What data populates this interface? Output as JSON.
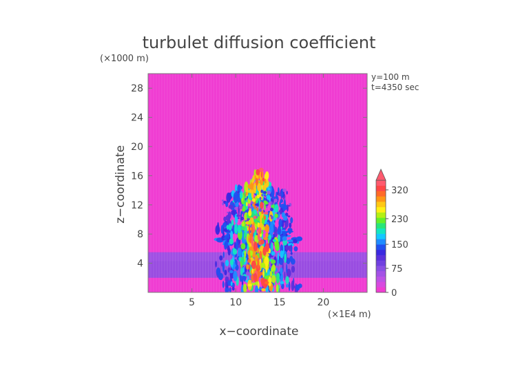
{
  "chart_data": {
    "type": "heatmap",
    "title": "turbulet diffusion coefficient",
    "xlabel": "x−coordinate",
    "ylabel": "z−coordinate",
    "x_unit": "(×1E4 m)",
    "y_unit": "(×1000 m)",
    "annotations": [
      "y=100 m",
      "t=4350 sec"
    ],
    "xlim": [
      0,
      25
    ],
    "ylim": [
      0,
      30
    ],
    "x_ticks": [
      5,
      10,
      15,
      20
    ],
    "y_ticks": [
      4,
      8,
      12,
      16,
      20,
      24,
      28
    ],
    "colorbar": {
      "ticks": [
        0,
        75,
        150,
        230,
        320
      ],
      "levels": [
        0,
        10,
        20,
        30,
        40,
        50,
        60,
        75,
        90,
        110,
        130,
        150,
        170,
        190,
        210,
        230,
        250,
        270,
        290,
        310,
        330,
        350
      ],
      "colors": [
        "#f03cd2",
        "#d84ae0",
        "#bd52e6",
        "#a452e6",
        "#8a4fe4",
        "#7040e0",
        "#5a30dc",
        "#3a28e0",
        "#2050f0",
        "#1e8cff",
        "#14c8ff",
        "#14e6c0",
        "#28e678",
        "#64f028",
        "#b4f014",
        "#fff014",
        "#ffc814",
        "#ff9614",
        "#ff6a28",
        "#ff4646",
        "#ff5a6e"
      ],
      "extend": "max"
    },
    "background_level": 0,
    "boundary_layer": {
      "z_range": [
        2,
        5.5
      ],
      "level": 45
    },
    "plume": {
      "x_center": 12.5,
      "z_top": 17,
      "peak_level": 320
    }
  },
  "colors": {
    "background": "#ffffff",
    "frame": "#7a7a7a",
    "text": "#444444"
  }
}
